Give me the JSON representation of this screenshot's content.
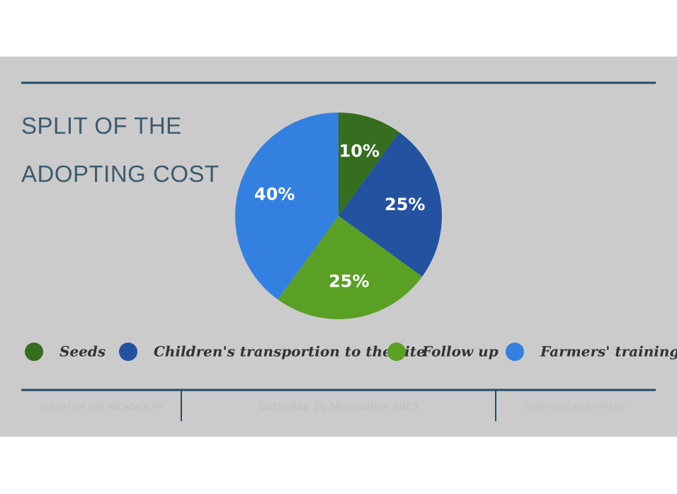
{
  "chart_data": {
    "type": "pie",
    "title": "SPLIT OF THE ADOPTING COST",
    "categories": [
      "Seeds",
      "Children's transportion to the site",
      "Follow up",
      "Farmers' training"
    ],
    "values": [
      10,
      25,
      25,
      40
    ],
    "value_labels": [
      "10%",
      "25%",
      "25%",
      "40%"
    ],
    "colors": [
      "#356e1f",
      "#2352a0",
      "#5aa025",
      "#3380e0"
    ],
    "legend": "bottom"
  },
  "footer": {
    "left": "EDUCATION FOR MADAGASCAR",
    "center": "Saturday 25 November 2023",
    "right": "COBHAM HEADQUARTERS"
  }
}
